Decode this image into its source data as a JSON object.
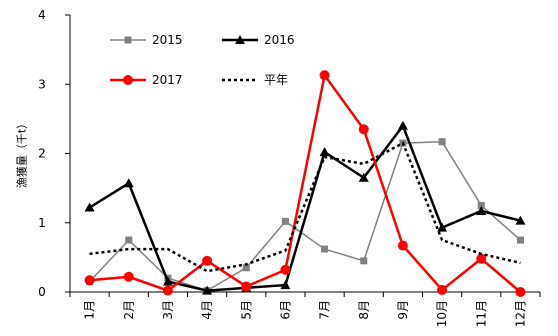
{
  "chart_data": {
    "type": "line",
    "ylabel": "漁獲量（千t）",
    "ylim": [
      0,
      4
    ],
    "yticks": [
      0,
      1,
      2,
      3,
      4
    ],
    "categories": [
      "1月",
      "2月",
      "3月",
      "4月",
      "5月",
      "6月",
      "7月",
      "8月",
      "9月",
      "10月",
      "11月",
      "12月"
    ],
    "grid": false,
    "legend_position": "top-left",
    "series": [
      {
        "name": "2015",
        "color": "#808080",
        "marker": "square",
        "dash": "solid",
        "values": [
          0.15,
          0.75,
          0.2,
          0.02,
          0.35,
          1.02,
          0.62,
          0.45,
          2.15,
          2.17,
          1.25,
          0.75
        ]
      },
      {
        "name": "2016",
        "color": "#000000",
        "marker": "triangle",
        "dash": "solid",
        "values": [
          1.22,
          1.57,
          0.15,
          0.02,
          0.06,
          0.1,
          2.02,
          1.65,
          2.4,
          0.93,
          1.17,
          1.03
        ]
      },
      {
        "name": "2017",
        "color": "#ff0000",
        "marker": "circle",
        "dash": "solid",
        "values": [
          0.17,
          0.22,
          0.02,
          0.45,
          0.08,
          0.32,
          3.13,
          2.35,
          0.67,
          0.03,
          0.48,
          0.0
        ]
      },
      {
        "name": "平年",
        "color": "#000000",
        "marker": "none",
        "dash": "dotted",
        "values": [
          0.55,
          0.62,
          0.62,
          0.3,
          0.4,
          0.6,
          1.95,
          1.85,
          2.15,
          0.75,
          0.55,
          0.42
        ]
      }
    ]
  }
}
